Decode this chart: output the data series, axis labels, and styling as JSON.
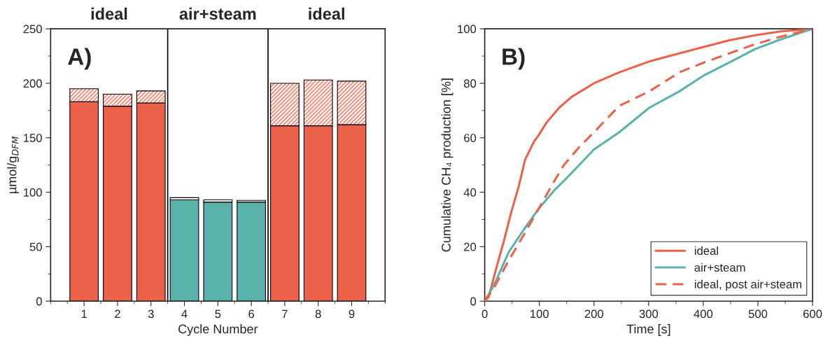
{
  "chart_data": [
    {
      "type": "bar",
      "stacked": true,
      "xlabel": "Cycle Number",
      "ylabel": "µmol/g$_{DFM}$",
      "x": [
        1,
        2,
        3,
        4,
        5,
        6,
        7,
        8,
        9
      ],
      "xlim": [
        0,
        10
      ],
      "xticks": [
        1,
        2,
        3,
        4,
        5,
        6,
        7,
        8,
        9
      ],
      "ylim": [
        0,
        250
      ],
      "yticks": [
        0,
        50,
        100,
        150,
        200,
        250
      ],
      "series": [
        {
          "colors": [
            "#ec6149",
            "#ec6149",
            "#ec6149",
            "#5ab3ab",
            "#5ab3ab",
            "#5ab3ab",
            "#ec6149",
            "#ec6149",
            "#ec6149"
          ],
          "values": [
            183,
            179,
            182,
            93,
            91,
            91,
            161,
            161,
            162
          ]
        },
        {
          "colors": [
            "#ec6149",
            "#ec6149",
            "#ec6149",
            "#ffffff",
            "#ffffff",
            "#ffffff",
            "#ec6149",
            "#ec6149",
            "#ec6149"
          ],
          "values": [
            12,
            11,
            11,
            2,
            2,
            1.5,
            39,
            42,
            40
          ]
        }
      ],
      "ref_lines": [
        {
          "axis": "x",
          "value": 3.5,
          "color": "#000000"
        },
        {
          "axis": "x",
          "value": 6.5,
          "color": "#000000"
        }
      ],
      "annotations": [
        "A)",
        "ideal",
        "air+steam",
        "ideal"
      ],
      "grid": false,
      "legend": false
    },
    {
      "type": "line",
      "xlabel": "Time [s]",
      "ylabel": "Cumulative CH₄ production [%]",
      "xlim": [
        0,
        600
      ],
      "xticks": [
        0,
        100,
        200,
        300,
        400,
        500,
        600
      ],
      "ylim": [
        0,
        100
      ],
      "yticks": [
        0,
        20,
        40,
        60,
        80,
        100
      ],
      "series": [
        {
          "name": "ideal",
          "color": "#ec6149",
          "line_style": "solid",
          "x": [
            0,
            7,
            21,
            35,
            49,
            62,
            74,
            90,
            99,
            113,
            136,
            159,
            200,
            246,
            301,
            356,
            402,
            448,
            494,
            540,
            600
          ],
          "values": [
            0,
            1.4,
            12,
            22,
            33,
            42,
            52,
            58.5,
            61,
            65.5,
            71,
            75,
            80,
            84,
            88,
            91,
            93.4,
            95.8,
            97.6,
            99,
            100
          ]
        },
        {
          "name": "air+steam",
          "color": "#5ab3ab",
          "line_style": "solid",
          "x": [
            0,
            16.5,
            44,
            72,
            99,
            127,
            154,
            200,
            246,
            301,
            356,
            402,
            448,
            494,
            540,
            600
          ],
          "values": [
            0,
            5.7,
            18,
            26.4,
            34,
            40.6,
            46,
            55.7,
            62,
            71,
            77,
            83,
            87.7,
            92.5,
            96,
            100
          ]
        },
        {
          "name": "ideal, post air+steam",
          "color": "#ec6149",
          "line_style": "dashed",
          "x": [
            0,
            16.5,
            44,
            72,
            99,
            127,
            145,
            173,
            200,
            246,
            301,
            356,
            402,
            448,
            494,
            540,
            600
          ],
          "values": [
            0,
            4.7,
            15,
            24.5,
            34,
            44,
            50,
            56.6,
            62,
            71.7,
            77,
            84,
            87.7,
            91,
            94.3,
            97,
            100
          ]
        }
      ],
      "annotations": [
        "B)"
      ],
      "grid": false,
      "legend": "bottom right"
    }
  ]
}
